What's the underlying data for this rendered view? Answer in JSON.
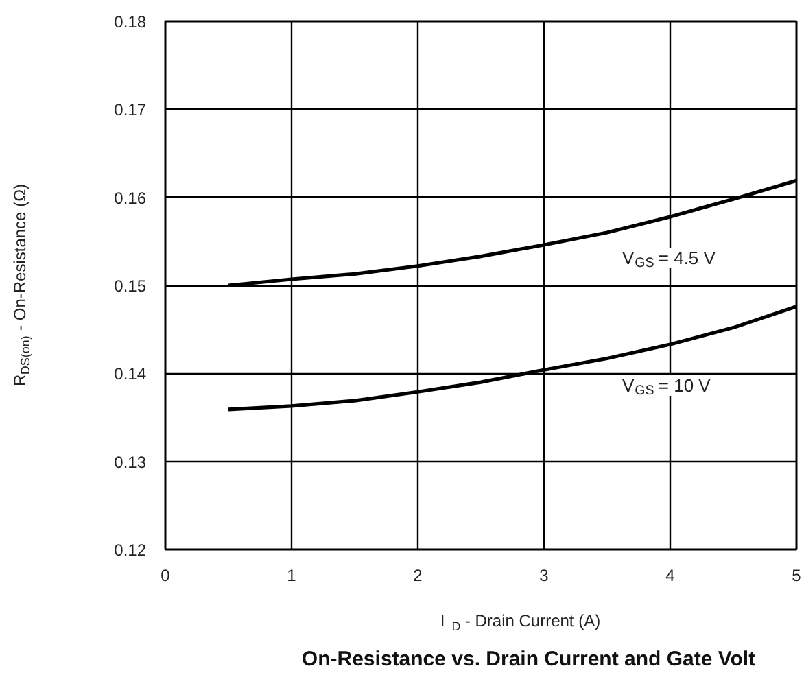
{
  "chart_data": {
    "type": "line",
    "title": "On-Resistance vs. Drain Current and Gate Volt",
    "xlabel": "I$_{D}$ - Drain Current (A)",
    "ylabel": "R$_{DS(on)}$ - On-Resistance (Ω)",
    "xlim": [
      0,
      5
    ],
    "xticks": [
      0,
      1,
      2,
      3,
      4,
      5
    ],
    "ylim": [
      0.12,
      0.18
    ],
    "yticks": [
      0.12,
      0.13,
      0.14,
      0.15,
      0.16,
      0.17,
      0.18
    ],
    "grid": true,
    "legend": false,
    "marker": "none",
    "line_style": "solid",
    "x": [
      0.5,
      1,
      1.5,
      2,
      2.5,
      3,
      3.5,
      4,
      4.5,
      5
    ],
    "series": [
      {
        "name": "V$_{GS}$ = 4.5 V",
        "color": "#000000",
        "values": [
          0.15,
          0.1507,
          0.1513,
          0.1522,
          0.1533,
          0.1546,
          0.156,
          0.1578,
          0.1598,
          0.1619
        ]
      },
      {
        "name": "V$_{GS}$ = 10 V",
        "color": "#000000",
        "values": [
          0.1359,
          0.1363,
          0.1369,
          0.1379,
          0.139,
          0.1404,
          0.1417,
          0.1433,
          0.1452,
          0.1476
        ]
      }
    ]
  }
}
